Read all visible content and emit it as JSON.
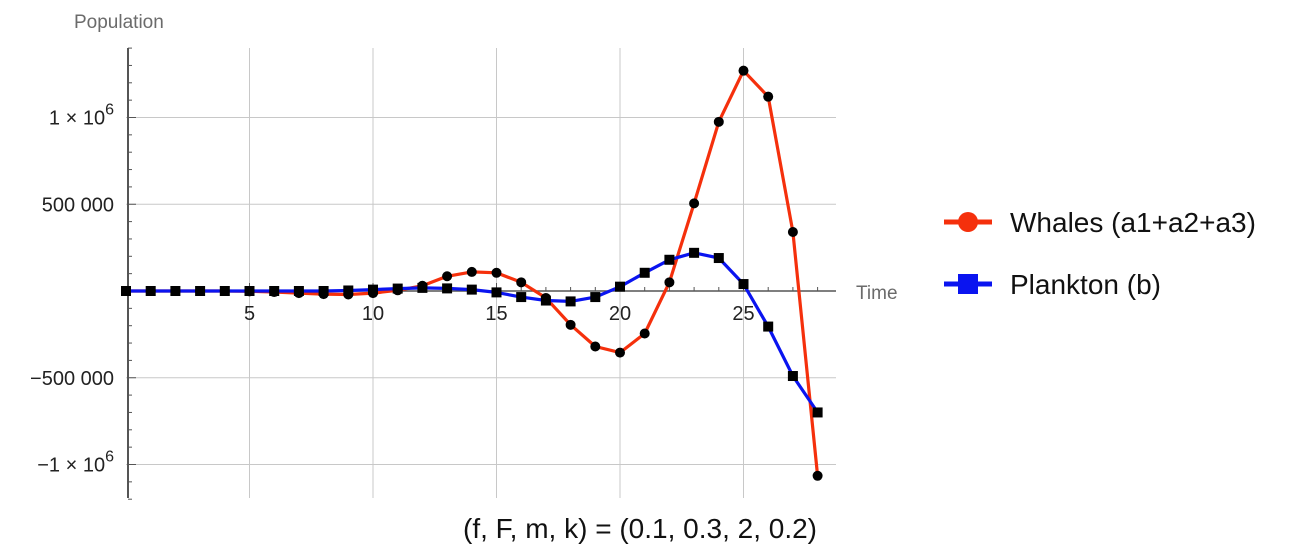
{
  "chart_data": {
    "type": "line",
    "title": "",
    "xlabel": "Time",
    "ylabel": "Population",
    "caption": "(f, F,  m, k) = (0.1, 0.3, 2, 0.2)",
    "xlim": [
      0,
      28.5
    ],
    "ylim": [
      -1200000,
      1400000
    ],
    "x_ticks": [
      5,
      10,
      15,
      20,
      25
    ],
    "x_tick_labels": [
      "5",
      "10",
      "15",
      "20",
      "25"
    ],
    "y_ticks": [
      {
        "value": 1000000,
        "label": "1 × 10",
        "exp": "6"
      },
      {
        "value": 500000,
        "label": "500 000",
        "exp": ""
      },
      {
        "value": -500000,
        "label": "−500 000",
        "exp": ""
      },
      {
        "value": -1000000,
        "label": "−1 × 10",
        "exp": "6"
      }
    ],
    "grid": true,
    "legend_position": "right",
    "x": [
      0,
      1,
      2,
      3,
      4,
      5,
      6,
      7,
      8,
      9,
      10,
      11,
      12,
      13,
      14,
      15,
      16,
      17,
      18,
      19,
      20,
      21,
      22,
      23,
      24,
      25,
      26,
      27,
      28
    ],
    "series": [
      {
        "name": "Whales (a1+a2+a3)",
        "color": "#f5300c",
        "marker": "circle",
        "values": [
          0,
          0,
          0,
          0,
          0,
          -2000,
          -6000,
          -12000,
          -18000,
          -20000,
          -12000,
          4000,
          30000,
          85000,
          110000,
          105000,
          50000,
          -40000,
          -195000,
          -320000,
          -355000,
          -245000,
          50000,
          505000,
          975000,
          1270000,
          1120000,
          340000,
          -1065000
        ]
      },
      {
        "name": "Plankton (b)",
        "color": "#0a14f0",
        "marker": "square",
        "values": [
          0,
          0,
          0,
          0,
          0,
          0,
          0,
          0,
          0,
          3000,
          8000,
          14000,
          18000,
          15000,
          8000,
          -8000,
          -35000,
          -55000,
          -60000,
          -35000,
          25000,
          105000,
          180000,
          220000,
          190000,
          40000,
          -205000,
          -490000,
          -700000
        ]
      }
    ]
  }
}
